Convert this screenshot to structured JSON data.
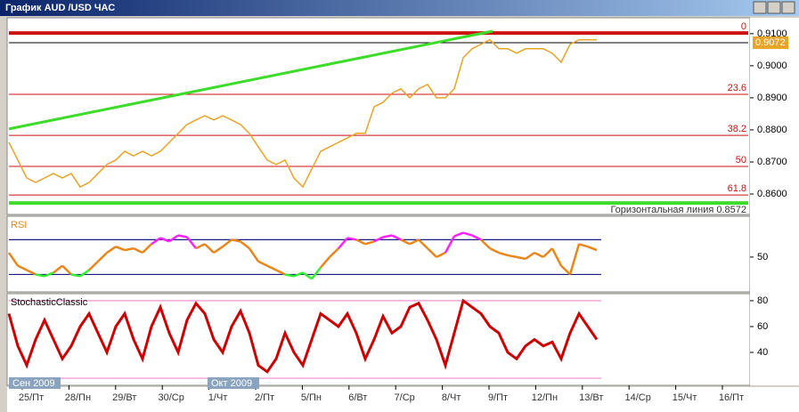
{
  "window_title": "График AUD /USD  ЧАС",
  "x_labels": [
    "25/Пт",
    "28/Пн",
    "29/Вт",
    "30/Ср",
    "1/Чт",
    "2/Пт",
    "5/Пн",
    "6/Вт",
    "7/Ср",
    "8/Чт",
    "9/Пт",
    "12/Пн",
    "13/Вт",
    "14/Ср",
    "15/Чт",
    "16/Пт"
  ],
  "month_labels": [
    "Сен 2009",
    "Окт 2009"
  ],
  "chart_data": [
    {
      "type": "line",
      "ylim": [
        0.8539,
        0.9144
      ],
      "yticks": [
        {
          "value": 0.86,
          "label": "0.8600"
        },
        {
          "value": 0.87,
          "label": "0.8700"
        },
        {
          "value": 0.88,
          "label": "0.8800"
        },
        {
          "value": 0.89,
          "label": "0.8900"
        },
        {
          "value": 0.9,
          "label": "0.9000"
        },
        {
          "value": 0.91,
          "label": "0.9100"
        }
      ],
      "series": [
        {
          "color": "#e8a426",
          "values": [
            0.8761,
            0.8706,
            0.865,
            0.8636,
            0.865,
            0.8664,
            0.865,
            0.8664,
            0.8622,
            0.8636,
            0.8664,
            0.8692,
            0.8706,
            0.8733,
            0.8719,
            0.8733,
            0.8719,
            0.8733,
            0.8761,
            0.8789,
            0.8817,
            0.8831,
            0.8844,
            0.8831,
            0.8844,
            0.8831,
            0.8817,
            0.8789,
            0.8747,
            0.8706,
            0.8692,
            0.8706,
            0.865,
            0.8622,
            0.8678,
            0.8733,
            0.8747,
            0.8761,
            0.8775,
            0.8789,
            0.8789,
            0.8872,
            0.8886,
            0.8914,
            0.8928,
            0.89,
            0.8928,
            0.8942,
            0.89,
            0.89,
            0.8928,
            0.9025,
            0.9053,
            0.9067,
            0.9081,
            0.9053,
            0.9053,
            0.9039,
            0.9053,
            0.9053,
            0.9053,
            0.9039,
            0.9011,
            0.9067,
            0.9081,
            0.9081,
            0.9081
          ]
        }
      ],
      "trendline": {
        "color": "#3ddc2a",
        "x": [
          0,
          54.3
        ],
        "values": [
          0.8803,
          0.9108
        ]
      },
      "fib_color": "#cc1111",
      "fib_levels": [
        {
          "value": 0.9102,
          "label": "0"
        },
        {
          "value": 0.8911,
          "label": "23.6"
        },
        {
          "value": 0.8783,
          "label": "38.2"
        },
        {
          "value": 0.8686,
          "label": "50"
        },
        {
          "value": 0.8597,
          "label": "61.8"
        }
      ],
      "hline": {
        "value": 0.8572,
        "label": "Горизонтальная линия 0.8572",
        "color": "#3ddc2a"
      },
      "current_price": 0.9072
    },
    {
      "type": "line",
      "ylim": [
        13,
        95
      ],
      "yticks": [
        50
      ],
      "levels": [
        30,
        70
      ],
      "level_color": "#1a1a80",
      "high_color": "#ff22ff",
      "low_color": "#33ee33",
      "series": [
        {
          "name": "RSI",
          "color": "#e8861a",
          "values": [
            55,
            40,
            35,
            30,
            28,
            32,
            40,
            30,
            28,
            35,
            45,
            55,
            62,
            58,
            60,
            55,
            65,
            72,
            68,
            75,
            73,
            60,
            65,
            55,
            62,
            70,
            68,
            60,
            45,
            40,
            35,
            30,
            28,
            32,
            25,
            38,
            50,
            60,
            72,
            70,
            65,
            68,
            73,
            75,
            70,
            65,
            70,
            60,
            50,
            55,
            74,
            78,
            75,
            70,
            60,
            55,
            52,
            50,
            48,
            55,
            50,
            60,
            40,
            30,
            65,
            62,
            58
          ]
        }
      ]
    },
    {
      "type": "line",
      "ylim": [
        16.6,
        84.1
      ],
      "yticks": [
        40,
        60,
        80
      ],
      "levels": [
        20,
        80
      ],
      "level_color": "#ee88cc",
      "series": [
        {
          "name": "StochasticClassic",
          "color": "#cc0000",
          "values": [
            70,
            45,
            30,
            50,
            65,
            50,
            35,
            45,
            60,
            70,
            55,
            40,
            60,
            70,
            50,
            35,
            60,
            75,
            55,
            40,
            65,
            78,
            70,
            50,
            40,
            60,
            72,
            55,
            30,
            25,
            35,
            55,
            40,
            30,
            50,
            70,
            65,
            60,
            70,
            55,
            35,
            50,
            68,
            55,
            60,
            75,
            78,
            65,
            50,
            30,
            55,
            80,
            75,
            70,
            60,
            55,
            40,
            35,
            45,
            50,
            45,
            48,
            35,
            55,
            70,
            60,
            50
          ]
        }
      ]
    }
  ]
}
